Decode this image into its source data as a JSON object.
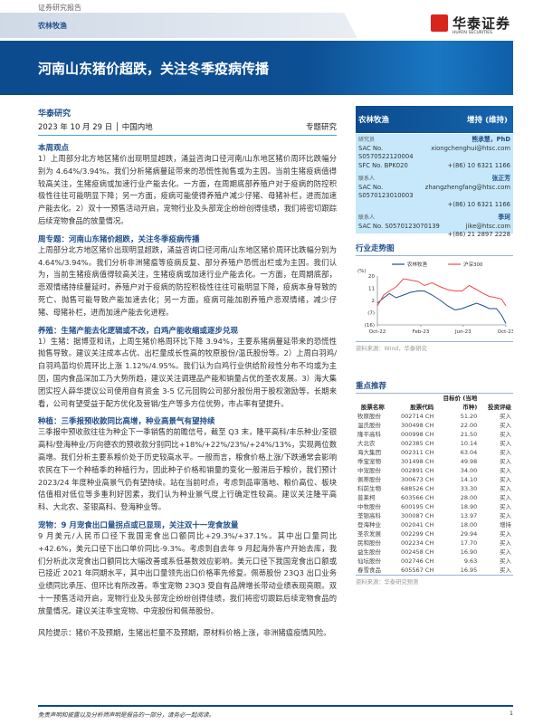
{
  "header": {
    "doc_type": "证券研究报告",
    "sector_tab": "农林牧渔",
    "logo_cn": "华泰证券",
    "logo_en": "HUATAI SECURITIES",
    "title": "河南山东猪价超跌，关注冬季疫病传播"
  },
  "meta": {
    "org": "华泰研究",
    "date": "2023 年 10 月 29 日 │ 中国内地",
    "type": "专题研究"
  },
  "sections": [
    {
      "title": "本周观点",
      "text": "1）上周部分北方地区猪价出现明显超跌，涌益咨询口径河南/山东地区猪价周环比跌幅分别为 4.64%/3.94%。我们分析猪病蔓延带来的恐慌性抛售或为主因。当前生猪疫病值得较高关注，生猪疫病或加速行业产能去化。一方面，在周期底部养殖户对于疫病的防控积极性往往可能明显下降；另一方面，疫病可能使得养殖户减少仔猪、母猪补栏，进而加速产能去化。2）双十一预售活动开启，宠物行业及头部宠企纷纷创得佳绩，我们将密切跟踪后续宠物食品的放量情况。"
    },
    {
      "title": "周专题：河南山东猪价超跌，关注冬季疫病传播",
      "text": "上周部分北方地区猪价出现明显超跌，涌益咨询口径河南/山东地区猪价周环比跌幅分别为 4.64%/3.94%。我们分析非洲猪瘟等疫病反复、部分养殖户恐慌出栏或为主因。我们认为，当前生猪疫病值得较高关注，生猪疫病或加速行业产能去化。一方面，在周期底部，悲观情绪持续蔓延时，养殖户对于疫病的防控积极性往往可能明显下降，疫病本身导致的死亡、抛售可能导致产能加速去化；另一方面，疫病可能加剧养殖户悲观情绪，减少仔猪、母猪补栏，进而加速产能去化进程。"
    },
    {
      "title": "养殖：生猪产能去化逻辑或不改，白鸡产能收缩或逐步兑现",
      "text": "1）生猪：据博亚和讯，上周生猪价格周环比下降 3.94%，主要系猪病蔓延带来的恐慌性抛售导致。建议关注成本占优、出栏量成长性高的牧原股份/温氏股份等。2）上周白羽鸡/白羽鸡苗均价周环比上涨 1.12%/4.95%。我们认为白鸡行业供给阶段性分布不均或为主因，国内食品深加工乃大势所趋，建议关注调理品产能和销量占优的圣农发展。3）海大集团实控人薛华提议公司使用自有资金 3-5 亿元回购公司部分股份用于股权激励等。长期来看，公司有望受益于配方优化及营销/生产等多方位优势，市占率有望提升。"
    },
    {
      "title": "种植：三季报预收款同比高增，种业高景气有望持续",
      "text": "三季报中预收款往往为种企下一季销售的前瞻信号，截至 Q3 末，隆平高科/丰乐种业/荃银高科/登海种业/万向德农的预收款分别同比+18%/+22%/23%/+24%/13%，实现两位数高增。我们分析主要系粮价处于历史较高水平。一般而言，粮食价格上涨/下跌通常会影响农民在下一个种植季的种植行为，因此种子价格和销量的变化一般滞后于粮价，我们预计2023/24 年度种业高景气仍有望持续。站在当前时点，考虑到品审落地、粮价高位、板块估值相对低位等多重利好因素，我们认为种业景气度上行确定性较高。建议关注隆平高科、大北农、荃银高科、登海种业等。"
    },
    {
      "title": "宠物：9 月宠食出口量拐点或已显现，关注双十一宠食放量",
      "text": "9 月美元/人民币口径下我国宠食出口额同比+29.3%/+37.1%。其中出口量同比+42.6%，美元口径下出口单价同比-9.3%。考虑到自去年 9 月起海外客户开始去库，我们分析此次宠食出口额同比大幅改善或系低基数效应影响。美元口径下我国宠食出口额或已接近 2021 年同期水平，其中出口量领先出口价格率先修复。佩蒂股份 23Q3 出口业务业绩同比承压、但环比有所改善。乖宝宠物 23Q3 受自有品牌增长带动业绩表现亮眼。双十一预售活动开启，宠物行业及头部宠企纷纷创得佳绩，我们将密切跟踪后续宠物食品的放量情况。建议关注乖宝宠物、中宠股份和佩蒂股份。"
    },
    {
      "title": "",
      "text": "风险提示：猪价不及预期，生猪出栏量不及预期，原材料价格上涨，非洲猪瘟疫情风险。"
    }
  ],
  "rating": {
    "sector": "农林牧渔",
    "rating": "增持 (维持)"
  },
  "analysts": [
    {
      "role": "研究员",
      "name": "熊承慧，PhD",
      "sac": "SAC No. S0570522120004",
      "extra": "SFC No. BPK020",
      "email": "xiongchenghui@htsc.com",
      "phone": "+(86) 10 6321 1166"
    },
    {
      "role": "联系人",
      "name": "张正芳",
      "sac": "SAC No. S0570123010003",
      "extra": "",
      "email": "zhangzhengfang@htsc.com",
      "phone": "+(86) 10 6321 1166"
    },
    {
      "role": "联系人",
      "name": "季珂",
      "sac": "SAC No. S0570123070139",
      "extra": "",
      "email": "jike@htsc.com",
      "phone": "+(86) 21 2897 2228"
    }
  ],
  "trend": {
    "title": "行业走势图",
    "source": "资料来源：Wind，华泰研究"
  },
  "chart_data": {
    "type": "line",
    "ylabel": "(%)",
    "ylim": [
      -16,
      20
    ],
    "yticks": [
      "20",
      "11",
      "2",
      "(7)",
      "(16)"
    ],
    "ytick_values": [
      20,
      11,
      2,
      -7,
      -16
    ],
    "xticks": [
      "Oct-22",
      "Feb-23",
      "Jun-23",
      "Oct-23"
    ],
    "xtick_dates": [
      "2022-10-28",
      "2023-02-28",
      "2023-06-28",
      "2023-10-27"
    ],
    "legend_position": "top",
    "x": [
      "2022-10-28",
      "2022-11-15",
      "2022-12-01",
      "2022-12-20",
      "2023-01-10",
      "2023-01-30",
      "2023-02-20",
      "2023-03-10",
      "2023-04-01",
      "2023-04-25",
      "2023-05-15",
      "2023-06-05",
      "2023-06-25",
      "2023-07-15",
      "2023-08-05",
      "2023-08-25",
      "2023-09-10",
      "2023-09-30",
      "2023-10-15",
      "2023-10-27"
    ],
    "series": [
      {
        "name": "农林牧渔",
        "color": "#1f4e8c",
        "values": [
          0,
          4,
          7,
          4,
          6,
          8,
          9,
          9,
          6,
          2,
          -2,
          -5,
          -4,
          -2,
          0,
          -2,
          -4,
          -4,
          -9,
          -15
        ]
      },
      {
        "name": "沪深300",
        "color": "#f04b4b",
        "values": [
          -2,
          6,
          9,
          12,
          18,
          17,
          16,
          13,
          15,
          12,
          10,
          9,
          9,
          13,
          10,
          7,
          5,
          4,
          3,
          -2
        ]
      }
    ]
  },
  "recommend": {
    "title": "重点推荐",
    "source": "资料来源：华泰研究预测",
    "columns": [
      "股票名称",
      "股票代码",
      "目标价 (当地币种)",
      "投资评级"
    ],
    "rows": [
      [
        "牧原股份",
        "002714 CH",
        "51.20",
        "买入"
      ],
      [
        "温氏股份",
        "300498 CH",
        "22.00",
        "买入"
      ],
      [
        "隆平高科",
        "000998 CH",
        "21.50",
        "买入"
      ],
      [
        "大北农",
        "002385 CH",
        "10.14",
        "买入"
      ],
      [
        "海大集团",
        "002311 CH",
        "63.04",
        "买入"
      ],
      [
        "乖宝宠物",
        "301498 CH",
        "49.98",
        "买入"
      ],
      [
        "中宠股份",
        "002891 CH",
        "34.00",
        "买入"
      ],
      [
        "佩蒂股份",
        "300673 CH",
        "14.10",
        "买入"
      ],
      [
        "科前生物",
        "688526 CH",
        "33.30",
        "买入"
      ],
      [
        "普莱柯",
        "603566 CH",
        "28.00",
        "买入"
      ],
      [
        "中牧股份",
        "600195 CH",
        "18.90",
        "买入"
      ],
      [
        "荃银高科",
        "300087 CH",
        "13.97",
        "买入"
      ],
      [
        "登海种业",
        "002041 CH",
        "18.00",
        "增持"
      ],
      [
        "圣农发展",
        "002299 CH",
        "29.94",
        "买入"
      ],
      [
        "民和股份",
        "002234 CH",
        "17.70",
        "买入"
      ],
      [
        "益生股份",
        "002458 CH",
        "16.90",
        "买入"
      ],
      [
        "仙坛股份",
        "002746 CH",
        "9.63",
        "买入"
      ],
      [
        "春雪食品",
        "605567 CH",
        "16.95",
        "买入"
      ]
    ]
  },
  "footer": {
    "disclaimer": "免责声明和披露以及分析师声明是报告的一部分，请务必一起阅读。",
    "page": "1"
  }
}
